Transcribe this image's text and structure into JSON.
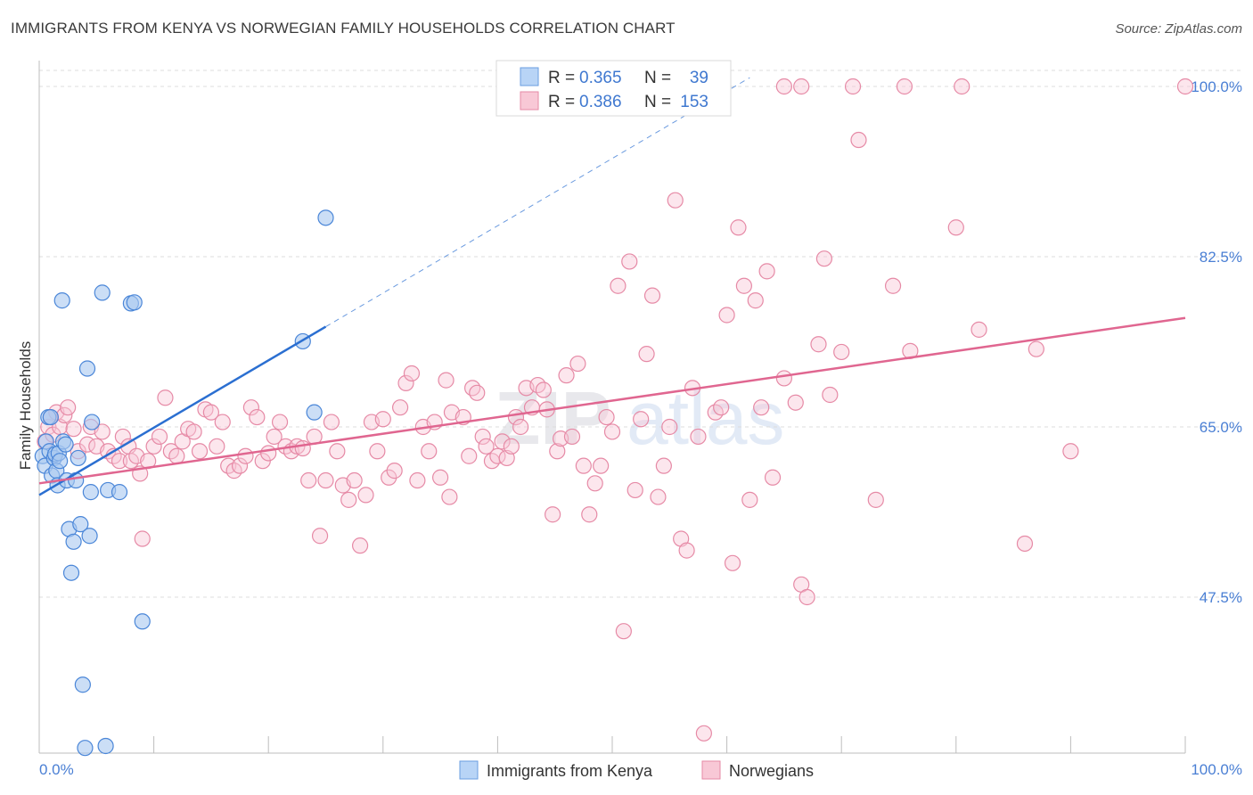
{
  "title": "IMMIGRANTS FROM KENYA VS NORWEGIAN FAMILY HOUSEHOLDS CORRELATION CHART",
  "source": "Source: ZipAtlas.com",
  "watermark": {
    "part1": "ZIP",
    "part2": "atlas"
  },
  "legend": {
    "rows": [
      {
        "r_label": "R =",
        "r_value": "0.365",
        "n_label": "N =",
        "n_value": "39"
      },
      {
        "r_label": "R =",
        "r_value": "0.386",
        "n_label": "N =",
        "n_value": "153"
      }
    ]
  },
  "bottom_legend": {
    "kenya": "Immigrants from Kenya",
    "norwegians": "Norwegians"
  },
  "colors": {
    "kenya_fill": "#a8c8f0",
    "kenya_stroke": "#4a86d8",
    "kenya_line": "#2b6fd1",
    "norw_fill": "#f8c8d6",
    "norw_stroke": "#e68aa6",
    "norw_line": "#e06690",
    "tick_label": "#4a7fd4",
    "grid": "#dcdcdc"
  },
  "chart_data": {
    "type": "scatter",
    "title": "IMMIGRANTS FROM KENYA VS NORWEGIAN FAMILY HOUSEHOLDS CORRELATION CHART",
    "xlabel": "",
    "ylabel": "Family Households",
    "xlim": [
      0,
      100
    ],
    "ylim": [
      31,
      102
    ],
    "x_tick_labels": [
      "0.0%",
      "100.0%"
    ],
    "y_ticks": [
      47.5,
      65.0,
      82.5,
      100.0
    ],
    "y_tick_labels": [
      "47.5%",
      "65.0%",
      "82.5%",
      "100.0%"
    ],
    "grid": true,
    "series": [
      {
        "name": "Immigrants from Kenya",
        "R": 0.365,
        "N": 39,
        "trend": {
          "x0": 0.0,
          "y0": 58.0,
          "x1": 25.0,
          "y1": 75.3,
          "dash_to_x": 62.0
        },
        "points": [
          [
            0.3,
            62.0
          ],
          [
            0.5,
            61.0
          ],
          [
            0.6,
            63.5
          ],
          [
            0.8,
            66.0
          ],
          [
            0.9,
            62.5
          ],
          [
            1.0,
            66.0
          ],
          [
            1.1,
            60.0
          ],
          [
            1.3,
            61.8
          ],
          [
            1.4,
            62.2
          ],
          [
            1.5,
            60.5
          ],
          [
            1.6,
            59.0
          ],
          [
            1.7,
            62.3
          ],
          [
            1.8,
            61.5
          ],
          [
            2.0,
            78.0
          ],
          [
            2.1,
            63.5
          ],
          [
            2.3,
            63.2
          ],
          [
            2.4,
            59.5
          ],
          [
            2.6,
            54.5
          ],
          [
            2.8,
            50.0
          ],
          [
            3.0,
            53.2
          ],
          [
            3.2,
            59.5
          ],
          [
            3.4,
            61.8
          ],
          [
            3.6,
            55.0
          ],
          [
            3.8,
            38.5
          ],
          [
            4.0,
            32.0
          ],
          [
            4.2,
            71.0
          ],
          [
            4.4,
            53.8
          ],
          [
            4.5,
            58.3
          ],
          [
            4.6,
            65.5
          ],
          [
            5.5,
            78.8
          ],
          [
            5.8,
            32.2
          ],
          [
            6.0,
            58.5
          ],
          [
            7.0,
            58.3
          ],
          [
            8.0,
            77.7
          ],
          [
            8.3,
            77.8
          ],
          [
            9.0,
            45.0
          ],
          [
            23.0,
            73.8
          ],
          [
            24.0,
            66.5
          ],
          [
            25.0,
            86.5
          ]
        ]
      },
      {
        "name": "Norwegians",
        "R": 0.386,
        "N": 153,
        "trend": {
          "x0": 0.0,
          "y0": 59.2,
          "x1": 100.0,
          "y1": 76.2
        },
        "points": [
          [
            0.5,
            63.5
          ],
          [
            0.8,
            65.0
          ],
          [
            1.0,
            66.0
          ],
          [
            1.2,
            64.2
          ],
          [
            1.5,
            66.5
          ],
          [
            1.8,
            65.0
          ],
          [
            2.2,
            66.2
          ],
          [
            2.5,
            67.0
          ],
          [
            3.0,
            64.8
          ],
          [
            3.4,
            62.5
          ],
          [
            4.2,
            63.2
          ],
          [
            4.5,
            65.0
          ],
          [
            5.0,
            63.0
          ],
          [
            5.5,
            64.5
          ],
          [
            6.0,
            62.5
          ],
          [
            6.5,
            62.0
          ],
          [
            7.0,
            61.5
          ],
          [
            7.3,
            64.0
          ],
          [
            7.8,
            63.0
          ],
          [
            8.0,
            61.5
          ],
          [
            8.5,
            62.0
          ],
          [
            8.8,
            60.2
          ],
          [
            9.0,
            53.5
          ],
          [
            9.5,
            61.5
          ],
          [
            10.0,
            63.0
          ],
          [
            10.5,
            64.0
          ],
          [
            11.0,
            68.0
          ],
          [
            11.5,
            62.5
          ],
          [
            12.0,
            62.0
          ],
          [
            12.5,
            63.5
          ],
          [
            13.0,
            64.8
          ],
          [
            13.5,
            64.5
          ],
          [
            14.0,
            62.5
          ],
          [
            14.5,
            66.8
          ],
          [
            15.0,
            66.5
          ],
          [
            15.5,
            63.0
          ],
          [
            16.0,
            65.5
          ],
          [
            16.5,
            61.0
          ],
          [
            17.0,
            60.5
          ],
          [
            17.5,
            61.0
          ],
          [
            18.0,
            62.0
          ],
          [
            18.5,
            67.0
          ],
          [
            19.0,
            66.0
          ],
          [
            19.5,
            61.5
          ],
          [
            20.0,
            62.3
          ],
          [
            20.5,
            64.0
          ],
          [
            21.0,
            65.5
          ],
          [
            21.5,
            63.0
          ],
          [
            22.0,
            62.5
          ],
          [
            22.5,
            63.0
          ],
          [
            23.0,
            62.8
          ],
          [
            23.5,
            59.5
          ],
          [
            24.0,
            64.0
          ],
          [
            24.5,
            53.8
          ],
          [
            25.0,
            59.5
          ],
          [
            25.5,
            65.5
          ],
          [
            26.0,
            62.5
          ],
          [
            26.5,
            59.0
          ],
          [
            27.0,
            57.5
          ],
          [
            27.5,
            59.5
          ],
          [
            28.0,
            52.8
          ],
          [
            28.5,
            58.0
          ],
          [
            29.0,
            65.5
          ],
          [
            29.5,
            62.5
          ],
          [
            30.0,
            65.8
          ],
          [
            30.5,
            59.8
          ],
          [
            31.0,
            60.5
          ],
          [
            31.5,
            67.0
          ],
          [
            32.0,
            69.5
          ],
          [
            32.5,
            70.5
          ],
          [
            33.0,
            59.5
          ],
          [
            33.5,
            65.0
          ],
          [
            34.0,
            62.5
          ],
          [
            34.5,
            65.5
          ],
          [
            35.0,
            59.8
          ],
          [
            35.5,
            69.8
          ],
          [
            35.8,
            57.8
          ],
          [
            36.0,
            66.5
          ],
          [
            37.0,
            66.0
          ],
          [
            37.5,
            62.0
          ],
          [
            37.8,
            69.0
          ],
          [
            38.2,
            68.5
          ],
          [
            38.7,
            64.0
          ],
          [
            39.0,
            63.0
          ],
          [
            39.5,
            61.5
          ],
          [
            40.0,
            62.0
          ],
          [
            40.4,
            63.5
          ],
          [
            40.8,
            61.8
          ],
          [
            41.2,
            63.0
          ],
          [
            41.6,
            66.0
          ],
          [
            42.0,
            65.0
          ],
          [
            42.5,
            69.0
          ],
          [
            43.0,
            67.0
          ],
          [
            43.5,
            69.3
          ],
          [
            44.0,
            68.8
          ],
          [
            44.3,
            66.8
          ],
          [
            44.8,
            56.0
          ],
          [
            45.2,
            62.5
          ],
          [
            45.5,
            63.8
          ],
          [
            46.0,
            70.3
          ],
          [
            46.5,
            64.0
          ],
          [
            47.0,
            71.5
          ],
          [
            47.5,
            61.0
          ],
          [
            48.0,
            56.0
          ],
          [
            48.5,
            59.2
          ],
          [
            49.0,
            61.0
          ],
          [
            49.5,
            66.0
          ],
          [
            50.0,
            64.5
          ],
          [
            50.5,
            79.5
          ],
          [
            51.0,
            44.0
          ],
          [
            51.5,
            82.0
          ],
          [
            52.0,
            58.5
          ],
          [
            52.5,
            65.8
          ],
          [
            53.0,
            72.5
          ],
          [
            53.5,
            78.5
          ],
          [
            54.0,
            57.8
          ],
          [
            54.5,
            61.0
          ],
          [
            55.0,
            65.0
          ],
          [
            55.5,
            88.3
          ],
          [
            56.0,
            53.5
          ],
          [
            56.5,
            52.3
          ],
          [
            57.0,
            69.0
          ],
          [
            57.5,
            64.0
          ],
          [
            58.0,
            33.5
          ],
          [
            59.0,
            66.5
          ],
          [
            59.5,
            67.0
          ],
          [
            60.0,
            76.5
          ],
          [
            60.5,
            51.0
          ],
          [
            61.0,
            85.5
          ],
          [
            61.5,
            79.5
          ],
          [
            62.0,
            57.5
          ],
          [
            62.5,
            78.0
          ],
          [
            63.0,
            67.0
          ],
          [
            63.5,
            81.0
          ],
          [
            64.0,
            59.8
          ],
          [
            65.0,
            70.0
          ],
          [
            66.0,
            67.5
          ],
          [
            66.5,
            48.8
          ],
          [
            67.0,
            47.5
          ],
          [
            68.0,
            73.5
          ],
          [
            68.5,
            82.3
          ],
          [
            69.0,
            68.3
          ],
          [
            70.0,
            72.7
          ],
          [
            71.5,
            94.5
          ],
          [
            73.0,
            57.5
          ],
          [
            74.5,
            79.5
          ],
          [
            76.0,
            72.8
          ],
          [
            80.0,
            85.5
          ],
          [
            82.0,
            75.0
          ],
          [
            86.0,
            53.0
          ],
          [
            87.0,
            73.0
          ],
          [
            90.0,
            62.5
          ],
          [
            65.0,
            100.0
          ],
          [
            66.5,
            100.0
          ],
          [
            71.0,
            100.0
          ],
          [
            75.5,
            100.0
          ],
          [
            80.5,
            100.0
          ],
          [
            100.0,
            100.0
          ]
        ]
      }
    ]
  }
}
